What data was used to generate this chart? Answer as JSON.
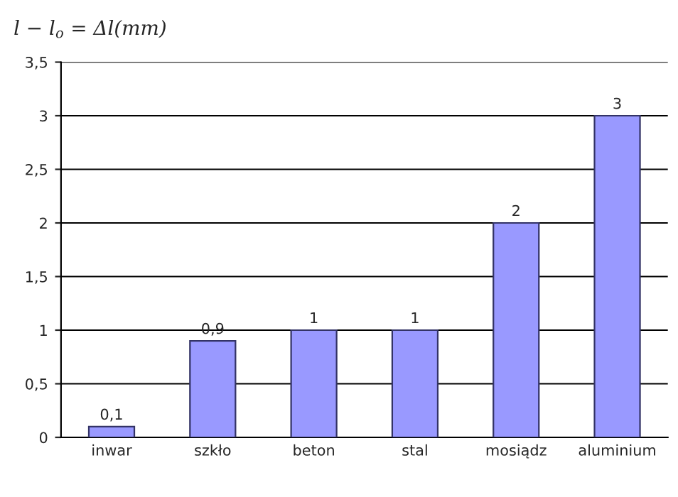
{
  "chart_data": {
    "type": "bar",
    "ylabel": "l − l$_{o}$ = Δl(mm)",
    "categories": [
      "inwar",
      "szkło",
      "beton",
      "stal",
      "mosiądz",
      "aluminium"
    ],
    "values": [
      0.1,
      0.9,
      1,
      1,
      2,
      3
    ],
    "value_labels": [
      "0,1",
      "0,9",
      "1",
      "1",
      "2",
      "3"
    ],
    "color": "#9999ff",
    "ylim": [
      0,
      3.5
    ],
    "yticks": [
      0,
      {
        "value": 0.5,
        "label": "0,5"
      },
      1,
      {
        "value": 1.5,
        "label": "1,5"
      },
      2,
      {
        "value": 2.5,
        "label": "2,5"
      },
      3,
      {
        "value": 3.5,
        "label": "3,5"
      }
    ],
    "grid": "y",
    "legend": false
  }
}
